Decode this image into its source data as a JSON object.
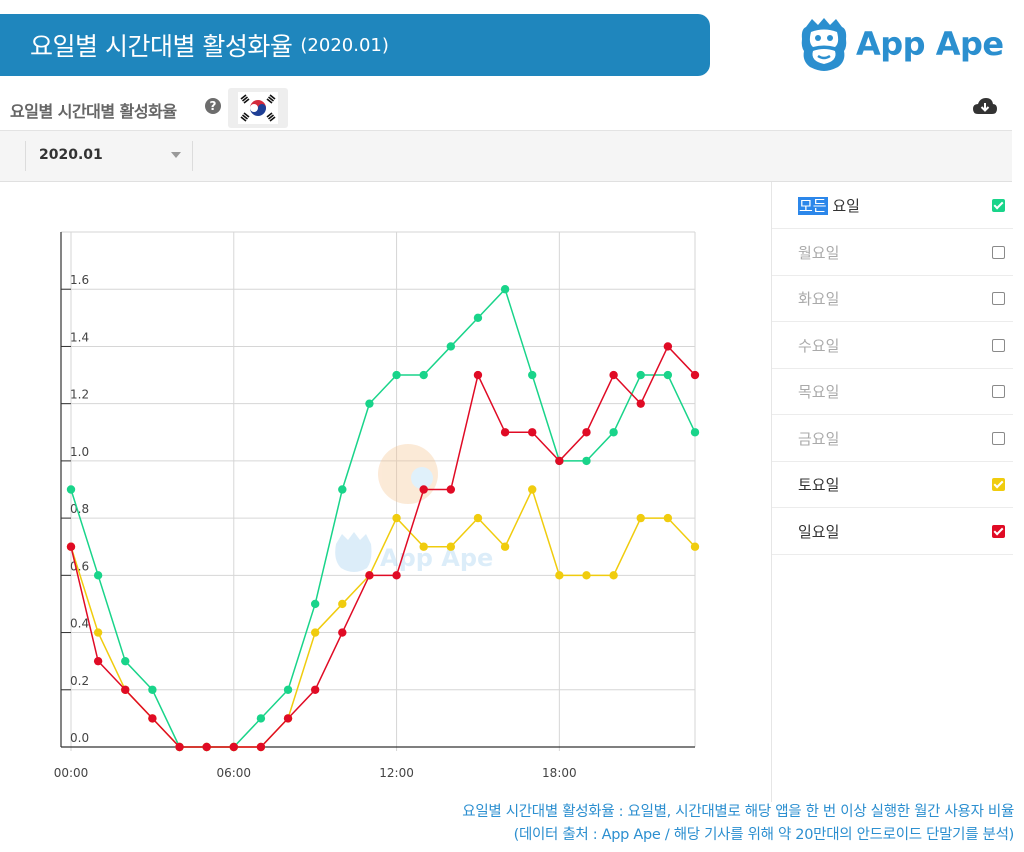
{
  "banner": {
    "title": "요일별 시간대별 활성화율",
    "date": "(2020.01)"
  },
  "brand": {
    "name": "App Ape",
    "logo_icon": "monkey-face-icon"
  },
  "section": {
    "title": "요일별 시간대별 활성화율",
    "help_icon": "question-circle-icon",
    "flag_icon": "korea-flag-icon",
    "download_icon": "cloud-download-icon"
  },
  "filter": {
    "month": "2020.01"
  },
  "legend": {
    "items": [
      {
        "prefix": "모든",
        "label": " 요일",
        "checked": true,
        "color": "#19d48a"
      },
      {
        "prefix": "",
        "label": "월요일",
        "checked": false,
        "color": ""
      },
      {
        "prefix": "",
        "label": "화요일",
        "checked": false,
        "color": ""
      },
      {
        "prefix": "",
        "label": "수요일",
        "checked": false,
        "color": ""
      },
      {
        "prefix": "",
        "label": "목요일",
        "checked": false,
        "color": ""
      },
      {
        "prefix": "",
        "label": "금요일",
        "checked": false,
        "color": ""
      },
      {
        "prefix": "",
        "label": "토요일",
        "checked": true,
        "color": "#f0cc0e"
      },
      {
        "prefix": "",
        "label": "일요일",
        "checked": true,
        "color": "#e00b25"
      }
    ]
  },
  "chart_data": {
    "type": "line",
    "x_ticks": [
      "00:00",
      "06:00",
      "12:00",
      "18:00"
    ],
    "y_ticks": [
      "0.0",
      "0.2",
      "0.4",
      "0.6",
      "0.8",
      "1.0",
      "1.2",
      "1.4",
      "1.6"
    ],
    "ylim": [
      0,
      1.8
    ],
    "xlim": [
      0,
      23
    ],
    "grid": true,
    "watermark": "App Ape",
    "series": [
      {
        "name": "모든 요일",
        "color": "#19d48a",
        "values": [
          0.9,
          0.6,
          0.3,
          0.2,
          0.0,
          0.0,
          0.0,
          0.1,
          0.2,
          0.5,
          0.9,
          1.2,
          1.3,
          1.3,
          1.4,
          1.5,
          1.6,
          1.3,
          1.0,
          1.0,
          1.1,
          1.3,
          1.3,
          1.1
        ]
      },
      {
        "name": "토요일",
        "color": "#f0cc0e",
        "values": [
          0.7,
          0.4,
          0.2,
          0.1,
          0.0,
          0.0,
          0.0,
          0.0,
          0.1,
          0.4,
          0.5,
          0.6,
          0.8,
          0.7,
          0.7,
          0.8,
          0.7,
          0.9,
          0.6,
          0.6,
          0.6,
          0.8,
          0.8,
          0.7
        ]
      },
      {
        "name": "일요일",
        "color": "#e00b25",
        "values": [
          0.7,
          0.3,
          0.2,
          0.1,
          0.0,
          0.0,
          0.0,
          0.0,
          0.1,
          0.2,
          0.4,
          0.6,
          0.6,
          0.9,
          0.9,
          1.3,
          1.1,
          1.1,
          1.0,
          1.1,
          1.3,
          1.2,
          1.4,
          1.3
        ]
      }
    ]
  },
  "footnote": {
    "line1": "요일별 시간대별 활성화율 : 요일별, 시간대별로 해당 앱을 한 번 이상 실행한 월간 사용자 비율",
    "line2": "(데이터 출처 : App Ape / 해당 기사를 위해 약 20만대의 안드로이드 단말기를 분석)"
  }
}
